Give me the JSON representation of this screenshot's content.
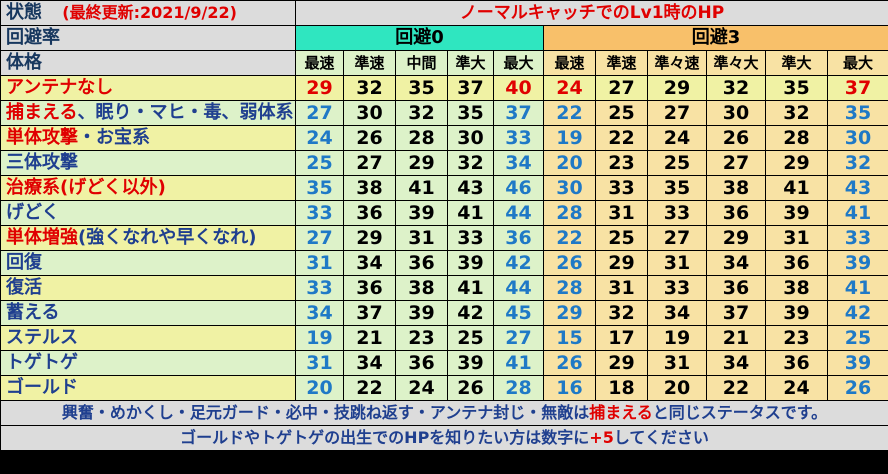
{
  "header": {
    "status_label": "状態",
    "updated": "(最終更新:2021/9/22)",
    "title": "ノーマルキャッチでのLv1時のHP",
    "evasion_label": "回避率",
    "group0": "回避0",
    "group3": "回避3",
    "build_label": "体格",
    "cols0": [
      "最速",
      "準速",
      "中間",
      "準大",
      "最大"
    ],
    "cols3": [
      "最速",
      "準速",
      "準々速",
      "準々大",
      "準大",
      "最大"
    ]
  },
  "rows": [
    {
      "label": "アンテナなし",
      "label_parts": [
        {
          "t": "アンテナなし",
          "c": "red"
        }
      ],
      "v0": [
        "29",
        "32",
        "35",
        "37",
        "40"
      ],
      "v3": [
        "24",
        "27",
        "29",
        "32",
        "35",
        "37"
      ],
      "firstBg": true,
      "minColor": "red",
      "maxColor": "red"
    },
    {
      "label": "捕まえる、眠り・マヒ・毒、弱体系",
      "label_parts": [
        {
          "t": "捕まえる",
          "c": "red"
        },
        {
          "t": "、眠り・マヒ・毒、弱体系",
          "c": "navy"
        }
      ],
      "v0": [
        "27",
        "30",
        "32",
        "35",
        "37"
      ],
      "v3": [
        "22",
        "25",
        "27",
        "30",
        "32",
        "35"
      ]
    },
    {
      "label": "単体攻撃・お宝系",
      "label_parts": [
        {
          "t": "単体攻撃",
          "c": "red"
        },
        {
          "t": "・お宝系",
          "c": "navy"
        }
      ],
      "v0": [
        "24",
        "26",
        "28",
        "30",
        "33"
      ],
      "v3": [
        "19",
        "22",
        "24",
        "26",
        "28",
        "30"
      ]
    },
    {
      "label": "三体攻撃",
      "label_parts": [
        {
          "t": "三体攻撃",
          "c": "navy"
        }
      ],
      "v0": [
        "25",
        "27",
        "29",
        "32",
        "34"
      ],
      "v3": [
        "20",
        "23",
        "25",
        "27",
        "29",
        "32"
      ]
    },
    {
      "label": "治療系(げどく以外)",
      "label_parts": [
        {
          "t": "治療系(げどく以外)",
          "c": "red"
        }
      ],
      "v0": [
        "35",
        "38",
        "41",
        "43",
        "46"
      ],
      "v3": [
        "30",
        "33",
        "35",
        "38",
        "41",
        "43"
      ]
    },
    {
      "label": "げどく",
      "label_parts": [
        {
          "t": "げどく",
          "c": "navy"
        }
      ],
      "v0": [
        "33",
        "36",
        "39",
        "41",
        "44"
      ],
      "v3": [
        "28",
        "31",
        "33",
        "36",
        "39",
        "41"
      ]
    },
    {
      "label": "単体増強(強くなれや早くなれ)",
      "label_parts": [
        {
          "t": "単体増強",
          "c": "red"
        },
        {
          "t": "(強くなれや早くなれ)",
          "c": "navy"
        }
      ],
      "v0": [
        "27",
        "29",
        "31",
        "33",
        "36"
      ],
      "v3": [
        "22",
        "25",
        "27",
        "29",
        "31",
        "33"
      ]
    },
    {
      "label": "回復",
      "label_parts": [
        {
          "t": "回復",
          "c": "navy"
        }
      ],
      "v0": [
        "31",
        "34",
        "36",
        "39",
        "42"
      ],
      "v3": [
        "26",
        "29",
        "31",
        "34",
        "36",
        "39"
      ]
    },
    {
      "label": "復活",
      "label_parts": [
        {
          "t": "復活",
          "c": "navy"
        }
      ],
      "v0": [
        "33",
        "36",
        "38",
        "41",
        "44"
      ],
      "v3": [
        "28",
        "31",
        "33",
        "36",
        "38",
        "41"
      ]
    },
    {
      "label": "蓄える",
      "label_parts": [
        {
          "t": "蓄える",
          "c": "navy"
        }
      ],
      "v0": [
        "34",
        "37",
        "39",
        "42",
        "45"
      ],
      "v3": [
        "29",
        "32",
        "34",
        "37",
        "39",
        "42"
      ]
    },
    {
      "label": "ステルス",
      "label_parts": [
        {
          "t": "ステルス",
          "c": "navy"
        }
      ],
      "v0": [
        "19",
        "21",
        "23",
        "25",
        "27"
      ],
      "v3": [
        "15",
        "17",
        "19",
        "21",
        "23",
        "25"
      ]
    },
    {
      "label": "トゲトゲ",
      "label_parts": [
        {
          "t": "トゲトゲ",
          "c": "navy"
        }
      ],
      "v0": [
        "31",
        "34",
        "36",
        "39",
        "41"
      ],
      "v3": [
        "26",
        "29",
        "31",
        "34",
        "36",
        "39"
      ]
    },
    {
      "label": "ゴールド",
      "label_parts": [
        {
          "t": "ゴールド",
          "c": "navy"
        }
      ],
      "v0": [
        "20",
        "22",
        "24",
        "26",
        "28"
      ],
      "v3": [
        "16",
        "18",
        "20",
        "22",
        "24",
        "26"
      ]
    }
  ],
  "footer": {
    "note_parts": [
      {
        "t": "興奮・めかくし・足元ガード・必中・技跳ね返す・アンテナ封じ・無敵は",
        "c": "navy"
      },
      {
        "t": "捕まえる",
        "c": "red"
      },
      {
        "t": "と同じステータスです。",
        "c": "navy"
      }
    ],
    "hint_parts": [
      {
        "t": "ゴールドやトゲトゲの出生でのHPを知りたい方は数字に",
        "c": "navy"
      },
      {
        "t": "+5",
        "c": "red"
      },
      {
        "t": "してください",
        "c": "navy"
      }
    ]
  },
  "colors": {
    "green_head": "#2fe6c0",
    "orange_head": "#f8c06a",
    "green_cell": "#ddf2c9",
    "orange_cell": "#f8e2a4",
    "red": "#e00000",
    "blue": "#1f79c6",
    "navy": "#1f3f8f"
  }
}
